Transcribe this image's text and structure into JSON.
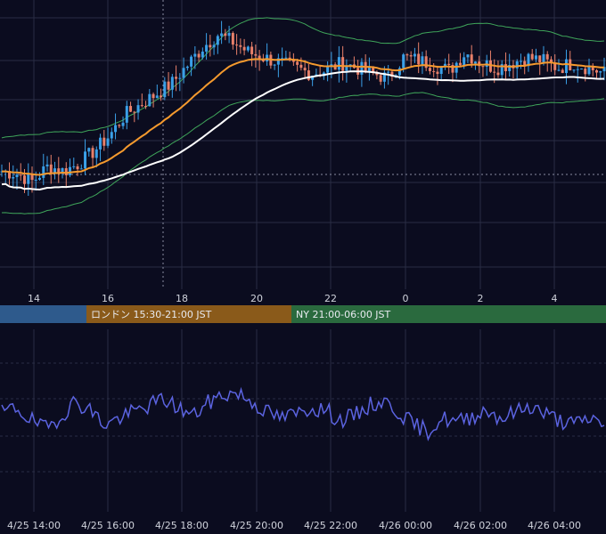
{
  "chart_data": [
    {
      "type": "candlestick",
      "title": "",
      "indicators": [
        "EMA (orange)",
        "SMA (white)",
        "Bollinger Bands (green)"
      ],
      "x_ticks": [
        "14",
        "16",
        "18",
        "20",
        "22",
        "0",
        "2",
        "4"
      ],
      "colors": {
        "up": "#3aa0e8",
        "down": "#e8806a",
        "ema": "#f59a2e",
        "sma": "#ffffff",
        "band": "#3fa55a",
        "grid": "#2a2d44"
      },
      "grid": true,
      "price_path": [
        0.44,
        0.43,
        0.4,
        0.46,
        0.44,
        0.47,
        0.52,
        0.58,
        0.66,
        0.7,
        0.74,
        0.78,
        0.85,
        0.92,
        0.97,
        0.94,
        0.9,
        0.88,
        0.86,
        0.84,
        0.82,
        0.83,
        0.86,
        0.84,
        0.82,
        0.8,
        0.88,
        0.87,
        0.85,
        0.83,
        0.9,
        0.86,
        0.84,
        0.86,
        0.88,
        0.87,
        0.84,
        0.86,
        0.84,
        0.82
      ]
    },
    {
      "type": "line",
      "session_bands": [
        {
          "label": "",
          "color": "#2e5a8c"
        },
        {
          "label": "ロンドン 15:30-21:00 JST",
          "color": "#8a5a1a"
        },
        {
          "label": "NY 21:00-06:00 JST",
          "color": "#2a6a3e"
        }
      ],
      "x_ticks": [
        "4/25 14:00",
        "4/25 16:00",
        "4/25 18:00",
        "4/25 20:00",
        "4/25 22:00",
        "4/26 00:00",
        "4/26 02:00",
        "4/26 04:00"
      ],
      "series": [
        {
          "color": "#5b63e0",
          "values": [
            0.55,
            0.6,
            0.48,
            0.4,
            0.52,
            0.66,
            0.58,
            0.44,
            0.5,
            0.56,
            0.62,
            0.68,
            0.6,
            0.52,
            0.64,
            0.72,
            0.74,
            0.66,
            0.56,
            0.5,
            0.54,
            0.6,
            0.58,
            0.48,
            0.52,
            0.62,
            0.66,
            0.56,
            0.44,
            0.38,
            0.5,
            0.46,
            0.52,
            0.58,
            0.5,
            0.56,
            0.62,
            0.54,
            0.48,
            0.44,
            0.5,
            0.46
          ]
        }
      ]
    }
  ]
}
